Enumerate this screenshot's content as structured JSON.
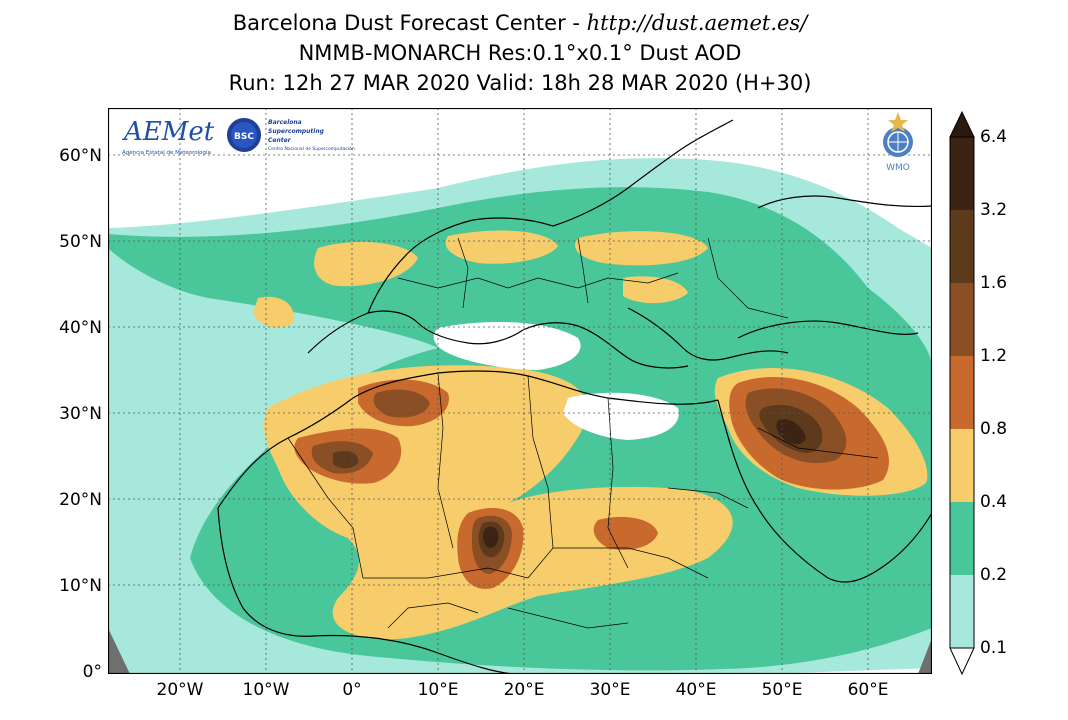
{
  "header": {
    "title_prefix": "Barcelona Dust Forecast Center - ",
    "url": "http://dust.aemet.es/",
    "line2": "NMMB-MONARCH   Res:0.1°x0.1°   Dust AOD",
    "line3": "Run: 12h 27 MAR 2020   Valid: 18h 28 MAR 2020 (H+30)"
  },
  "map": {
    "lat_labels": [
      "60°N",
      "50°N",
      "40°N",
      "30°N",
      "20°N",
      "10°N",
      "0°"
    ],
    "lon_labels": [
      "20°W",
      "10°W",
      "0°",
      "10°E",
      "20°E",
      "30°E",
      "40°E",
      "50°E",
      "60°E"
    ],
    "lon_range": [
      -28,
      67
    ],
    "lat_range": [
      0,
      65
    ],
    "grid": true,
    "logos": {
      "aemet": "AEMet",
      "aemet_sub": "Agencia Estatal de Meteorología",
      "bsc_badge": "BSC",
      "bsc_lines": [
        "Barcelona",
        "Supercomputing",
        "Center"
      ],
      "bsc_sub": "Centro Nacional de Supercomputación",
      "wmo": "WMO"
    }
  },
  "colorbar": {
    "labels": [
      "6.4",
      "3.2",
      "1.6",
      "1.2",
      "0.8",
      "0.4",
      "0.2",
      "0.1"
    ],
    "colors": [
      "#3b2414",
      "#5e3a1c",
      "#8a4f24",
      "#c8692e",
      "#f6cd6a",
      "#49c79b",
      "#a7e8dd"
    ],
    "extend_colors": {
      "top": "#2a1a0e",
      "bottom": "#ffffff"
    }
  },
  "legend_colors": {
    "0.1-0.2": "#a7e8dd",
    "0.2-0.4": "#49c79b",
    "0.4-0.8": "#f6cd6a",
    "0.8-1.2": "#c8692e",
    "1.2-1.6": "#8a4f24",
    "1.6-3.2": "#5e3a1c",
    "3.2-6.4": "#3b2414"
  }
}
